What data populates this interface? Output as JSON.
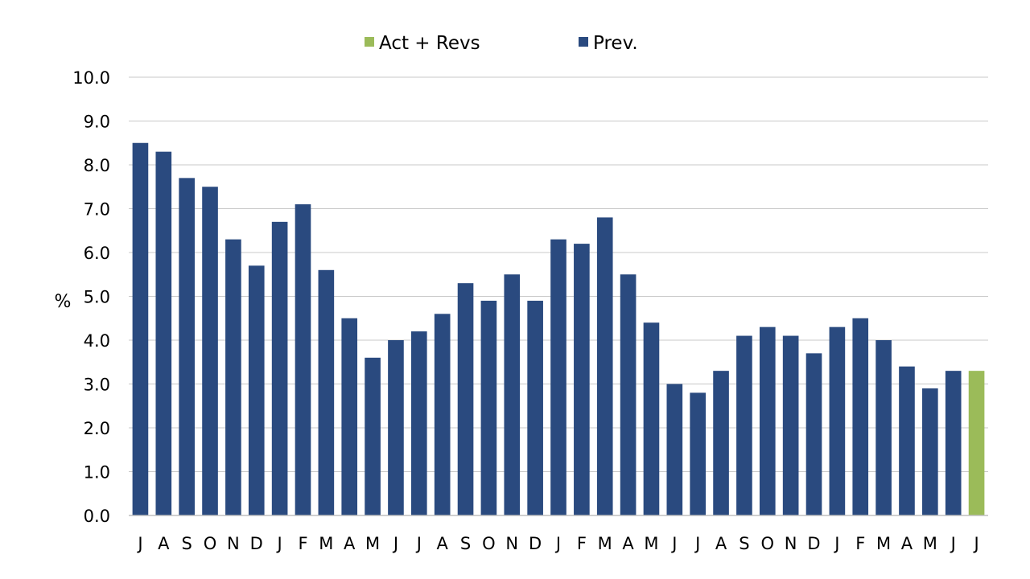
{
  "chart_data": {
    "type": "bar",
    "categories": [
      "J",
      "A",
      "S",
      "O",
      "N",
      "D",
      "J",
      "F",
      "M",
      "A",
      "M",
      "J",
      "J",
      "A",
      "S",
      "O",
      "N",
      "D",
      "J",
      "F",
      "M",
      "A",
      "M",
      "J",
      "J",
      "A",
      "S",
      "O",
      "N",
      "D",
      "J",
      "F",
      "M",
      "A",
      "M",
      "J",
      "J"
    ],
    "series": [
      {
        "name": "Prev.",
        "color": "#2a4a7f",
        "values": [
          8.5,
          8.3,
          7.7,
          7.5,
          6.3,
          5.7,
          6.7,
          7.1,
          5.6,
          4.5,
          3.6,
          4.0,
          4.2,
          4.6,
          5.3,
          4.9,
          5.5,
          4.9,
          6.3,
          6.2,
          6.8,
          5.5,
          4.4,
          3.0,
          2.8,
          3.3,
          4.1,
          4.3,
          4.1,
          3.7,
          4.3,
          4.5,
          4.0,
          3.4,
          2.9,
          3.3,
          null
        ]
      },
      {
        "name": "Act + Revs",
        "color": "#9bbb59",
        "values": [
          null,
          null,
          null,
          null,
          null,
          null,
          null,
          null,
          null,
          null,
          null,
          null,
          null,
          null,
          null,
          null,
          null,
          null,
          null,
          null,
          null,
          null,
          null,
          null,
          null,
          null,
          null,
          null,
          null,
          null,
          null,
          null,
          null,
          null,
          null,
          null,
          3.3
        ]
      }
    ],
    "ylabel": "%",
    "ylim": [
      0,
      10
    ],
    "yticks": [
      "0.0",
      "1.0",
      "2.0",
      "3.0",
      "4.0",
      "5.0",
      "6.0",
      "7.0",
      "8.0",
      "9.0",
      "10.0"
    ],
    "grid": true,
    "legend_position": "top-center"
  },
  "legend": [
    {
      "label": "Act + Revs",
      "color": "#9bbb59"
    },
    {
      "label": "Prev.",
      "color": "#2a4a7f"
    }
  ]
}
